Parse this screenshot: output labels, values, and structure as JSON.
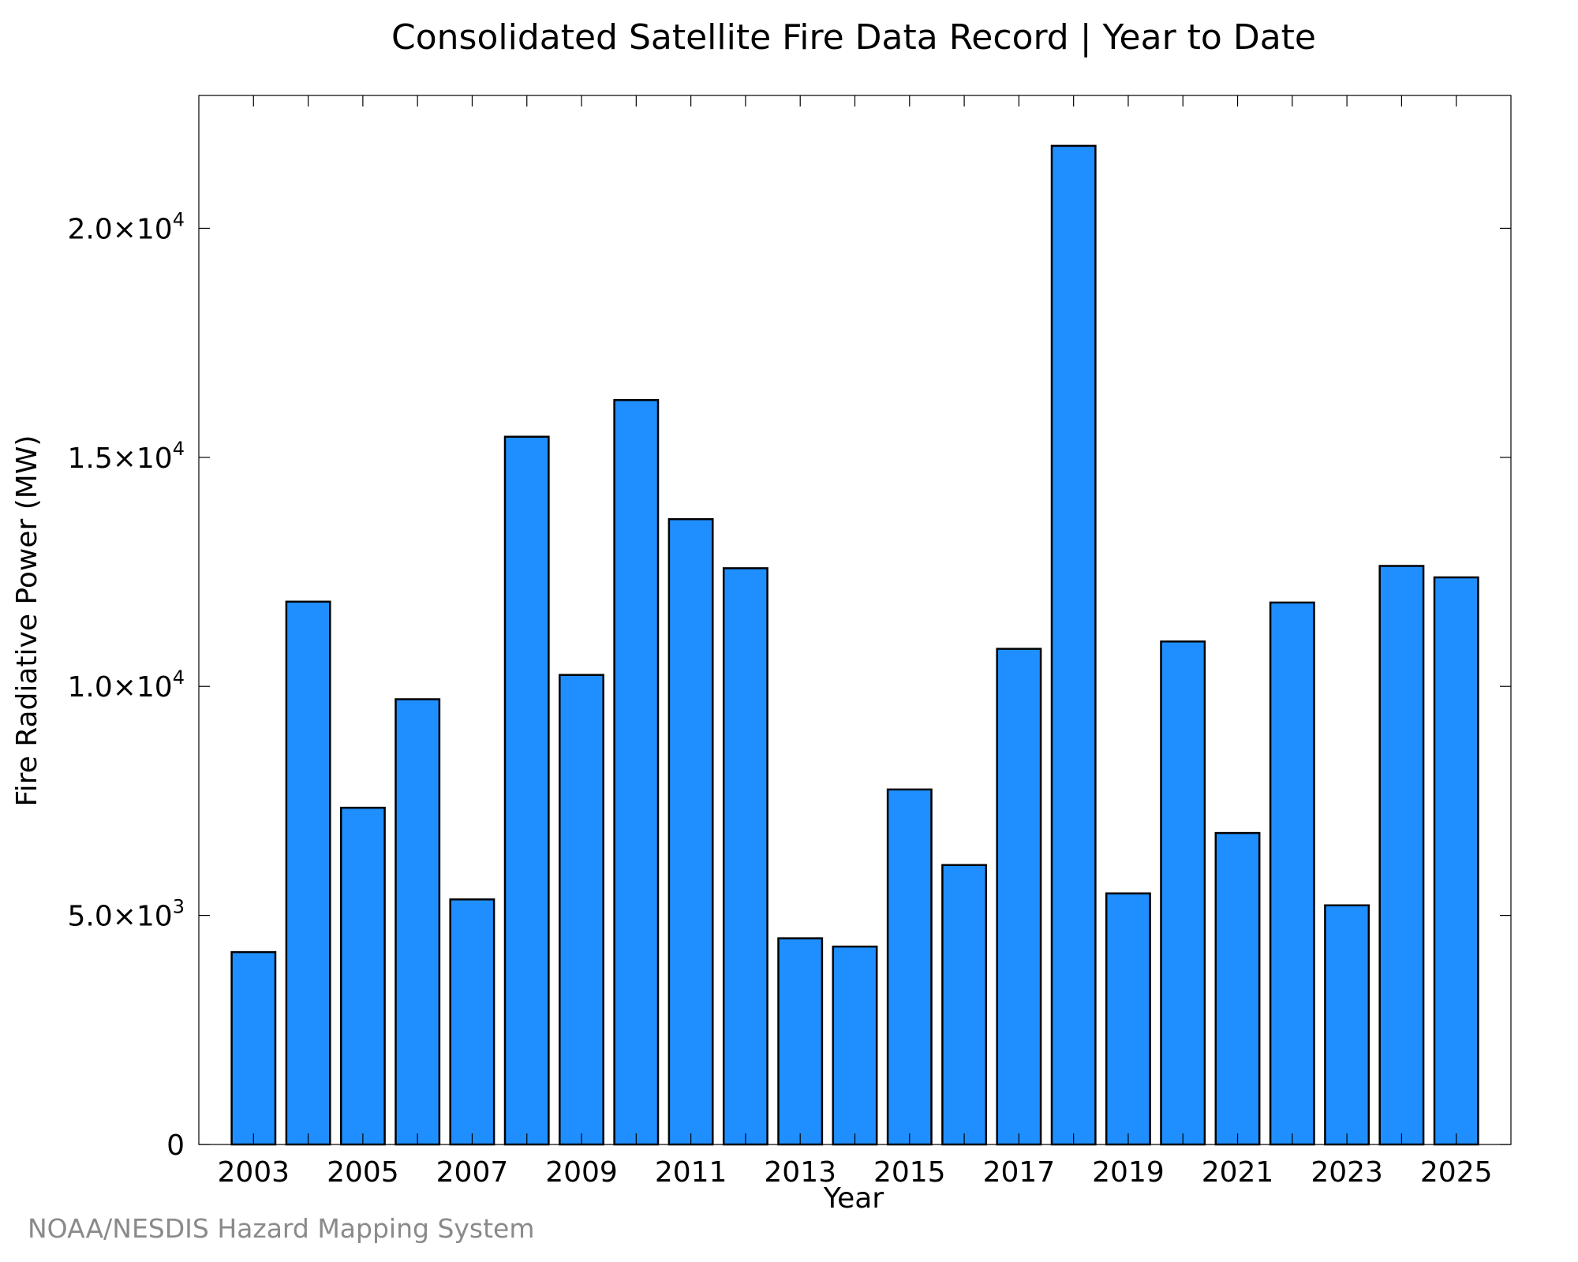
{
  "chart_data": {
    "type": "bar",
    "title": "Consolidated Satellite Fire Data Record | Year to Date",
    "xlabel": "Year",
    "ylabel": "Fire Radiative Power (MW)",
    "categories": [
      "2003",
      "2004",
      "2005",
      "2006",
      "2007",
      "2008",
      "2009",
      "2010",
      "2011",
      "2012",
      "2013",
      "2014",
      "2015",
      "2016",
      "2017",
      "2018",
      "2019",
      "2020",
      "2021",
      "2022",
      "2023",
      "2024",
      "2025"
    ],
    "values": [
      4200,
      11850,
      7350,
      9720,
      5350,
      15450,
      10250,
      16250,
      13650,
      12580,
      4500,
      4320,
      7750,
      6100,
      10820,
      21800,
      5480,
      10980,
      6800,
      11830,
      5220,
      12630,
      12380
    ],
    "x_tick_labels": [
      "2003",
      "2005",
      "2007",
      "2009",
      "2011",
      "2013",
      "2015",
      "2017",
      "2019",
      "2021",
      "2023",
      "2025"
    ],
    "y_ticks": [
      {
        "value": 0,
        "mantissa": "0",
        "exp": ""
      },
      {
        "value": 5000,
        "mantissa": "5.0×10",
        "exp": "3"
      },
      {
        "value": 10000,
        "mantissa": "1.0×10",
        "exp": "4"
      },
      {
        "value": 15000,
        "mantissa": "1.5×10",
        "exp": "4"
      },
      {
        "value": 20000,
        "mantissa": "2.0×10",
        "exp": "4"
      }
    ],
    "ylim": [
      0,
      22900
    ],
    "bar_color": "#1f8fff",
    "bar_edge_color": "#000000",
    "grid": false,
    "legend": "none"
  },
  "credit": "NOAA/NESDIS Hazard Mapping System"
}
